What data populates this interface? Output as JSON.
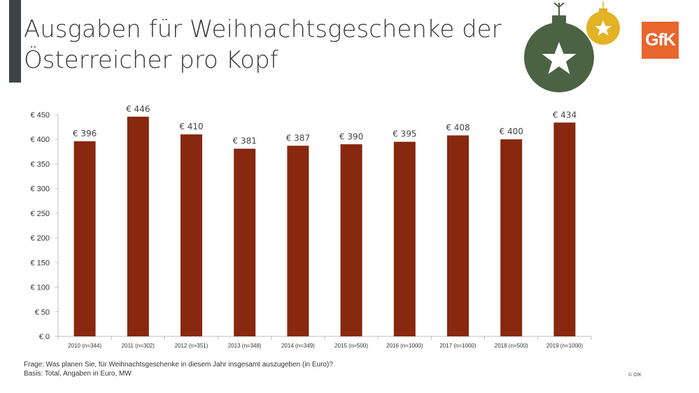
{
  "slide": {
    "title_line1": "Ausgaben für Weihnachtsgeschenke der",
    "title_line2": "Österreicher pro Kopf",
    "logo_text": "GfK",
    "footnote_question": "Frage: Was planen Sie, für Weihnachtsgeschenke in diesem Jahr insgesamt auszugeben (in Euro)?",
    "footnote_basis": "Basis: Total, Angaben in Euro, MW",
    "copyright": "© GfK"
  },
  "colors": {
    "bar": "#87280f",
    "ornament_large": "#4b6343",
    "ornament_small": "#e3b225",
    "logo": "#e8652d",
    "accent": "#3e4346"
  },
  "chart_data": {
    "type": "bar",
    "categories": [
      "2010 (n=344)",
      "2011 (n=302)",
      "2012 (n=351)",
      "2013 (n=348)",
      "2014 (n=349)",
      "2015 (n=500)",
      "2016 (n=1000)",
      "2017 (n=1000)",
      "2018 (n=500)",
      "2019 (n=1000)"
    ],
    "values": [
      396,
      446,
      410,
      381,
      387,
      390,
      395,
      408,
      400,
      434
    ],
    "value_labels": [
      "€ 396",
      "€ 446",
      "€ 410",
      "€ 381",
      "€ 387",
      "€ 390",
      "€ 395",
      "€ 408",
      "€ 400",
      "€ 434"
    ],
    "y_ticks": [
      0,
      50,
      100,
      150,
      200,
      250,
      300,
      350,
      400,
      450
    ],
    "y_tick_labels": [
      "€ 0",
      "€ 50",
      "€ 100",
      "€ 150",
      "€ 200",
      "€ 250",
      "€ 300",
      "€ 350",
      "€ 400",
      "€ 450"
    ],
    "ylim": [
      0,
      450
    ],
    "grid": false,
    "legend": "none"
  }
}
